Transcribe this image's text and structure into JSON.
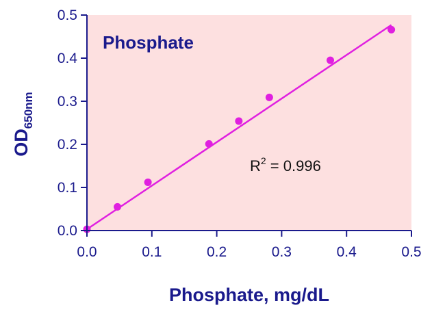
{
  "chart_data": {
    "type": "scatter",
    "title": "Phosphate",
    "xlabel": "Phosphate, mg/dL",
    "ylabel": {
      "main": "OD",
      "subscript": "650nm"
    },
    "xlim": [
      0.0,
      0.5
    ],
    "ylim": [
      0.0,
      0.5
    ],
    "x_ticks": [
      "0.0",
      "0.1",
      "0.2",
      "0.3",
      "0.4",
      "0.5"
    ],
    "y_ticks": [
      "0.0",
      "0.1",
      "0.2",
      "0.3",
      "0.4",
      "0.5"
    ],
    "grid": false,
    "series": [
      {
        "points": [
          [
            0.0,
            0.003
          ],
          [
            0.047,
            0.055
          ],
          [
            0.094,
            0.112
          ],
          [
            0.188,
            0.201
          ],
          [
            0.234,
            0.254
          ],
          [
            0.281,
            0.309
          ],
          [
            0.375,
            0.395
          ],
          [
            0.469,
            0.466
          ]
        ]
      }
    ],
    "fit_line": {
      "x": [
        0.0,
        0.469
      ],
      "y": [
        0.003,
        0.477
      ]
    },
    "annotation": {
      "prefix": "R",
      "superscript": "2",
      "suffix": " = 0.996"
    },
    "colors": {
      "plot_background": "#fde0e0",
      "points": "#e020e0",
      "line": "#e020e0",
      "axis": "#1a1a8c",
      "text": "#1a1a8c"
    }
  }
}
